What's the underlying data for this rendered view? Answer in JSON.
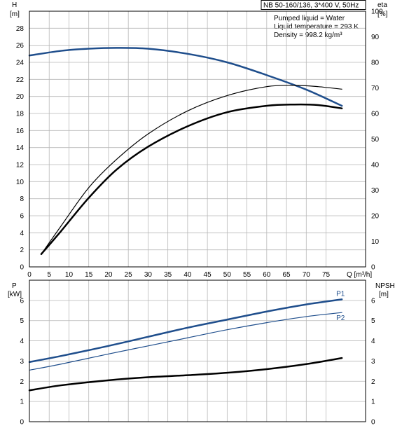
{
  "info_box": {
    "title": "NB 50-160/136, 3*400 V, 50Hz",
    "lines": [
      "Pumped liquid = Water",
      "Liquid temperature = 293 K",
      "Density = 998.2 kg/m³"
    ]
  },
  "colors": {
    "blue": "#1f4e8c",
    "black": "#000000",
    "grid": "#b8b8b8"
  },
  "chart_data": [
    {
      "type": "line",
      "panel": "head-efficiency",
      "y_left_label": [
        "H",
        "[m]"
      ],
      "y_right_label": [
        "eta",
        "[%]"
      ],
      "x_axis_label": "Q [m³/h]",
      "xlim": [
        0,
        85
      ],
      "ylim_left": [
        0,
        30
      ],
      "ylim_right": [
        0,
        100
      ],
      "x_ticks": [
        0,
        5,
        10,
        15,
        20,
        25,
        30,
        35,
        40,
        45,
        50,
        55,
        60,
        65,
        70,
        75
      ],
      "y_left_ticks": [
        0,
        2,
        4,
        6,
        8,
        10,
        12,
        14,
        16,
        18,
        20,
        22,
        24,
        26,
        28
      ],
      "y_right_ticks": [
        0,
        10,
        20,
        30,
        40,
        50,
        60,
        70,
        80,
        90,
        100
      ],
      "grid": true,
      "series": [
        {
          "axis": "left",
          "color": "#1f4e8c",
          "width": 2.5,
          "dash_until_x": 8,
          "x": [
            0,
            8,
            15,
            22,
            30,
            40,
            50,
            60,
            70,
            79
          ],
          "y": [
            24.8,
            25.35,
            25.6,
            25.7,
            25.6,
            25.0,
            24.0,
            22.5,
            20.8,
            18.9
          ]
        },
        {
          "axis": "right",
          "color": "#000000",
          "width": 1.2,
          "x": [
            3,
            8,
            15,
            22,
            30,
            40,
            50,
            60,
            67,
            73,
            79
          ],
          "y": [
            5,
            16,
            31,
            42,
            52,
            61,
            67,
            70.5,
            71,
            70.5,
            69.5
          ]
        },
        {
          "axis": "right",
          "color": "#000000",
          "width": 2.5,
          "dash_until_x": 8,
          "x": [
            3,
            8,
            15,
            22,
            30,
            40,
            50,
            60,
            67,
            73,
            79
          ],
          "y": [
            5,
            14,
            27,
            38,
            47,
            55,
            60.5,
            63,
            63.5,
            63.3,
            62
          ]
        }
      ]
    },
    {
      "type": "line",
      "panel": "power-npsh",
      "y_left_label": [
        "P",
        "[kW]"
      ],
      "y_right_label": [
        "NPSH",
        "[m]"
      ],
      "xlim": [
        0,
        85
      ],
      "ylim_left": [
        0,
        7
      ],
      "ylim_right": [
        0,
        7
      ],
      "y_left_ticks": [
        0,
        1,
        2,
        3,
        4,
        5,
        6
      ],
      "y_right_ticks": [
        0,
        1,
        2,
        3,
        4,
        5,
        6
      ],
      "grid": true,
      "series": [
        {
          "name": "P1",
          "axis": "left",
          "color": "#1f4e8c",
          "width": 2.5,
          "dash_until_x": 8,
          "x": [
            0,
            8,
            20,
            30,
            40,
            50,
            60,
            70,
            79
          ],
          "y": [
            2.95,
            3.25,
            3.75,
            4.2,
            4.65,
            5.05,
            5.45,
            5.8,
            6.05
          ]
        },
        {
          "name": "P2",
          "axis": "left",
          "color": "#1f4e8c",
          "width": 1.2,
          "x": [
            0,
            8,
            20,
            30,
            40,
            50,
            60,
            70,
            79
          ],
          "y": [
            2.55,
            2.85,
            3.35,
            3.75,
            4.15,
            4.55,
            4.9,
            5.2,
            5.4
          ]
        },
        {
          "axis": "right",
          "color": "#000000",
          "width": 2.5,
          "dash_until_x": 8,
          "x": [
            0,
            8,
            20,
            30,
            40,
            50,
            60,
            70,
            79
          ],
          "y": [
            1.55,
            1.8,
            2.05,
            2.2,
            2.3,
            2.42,
            2.6,
            2.85,
            3.15
          ]
        }
      ]
    }
  ]
}
